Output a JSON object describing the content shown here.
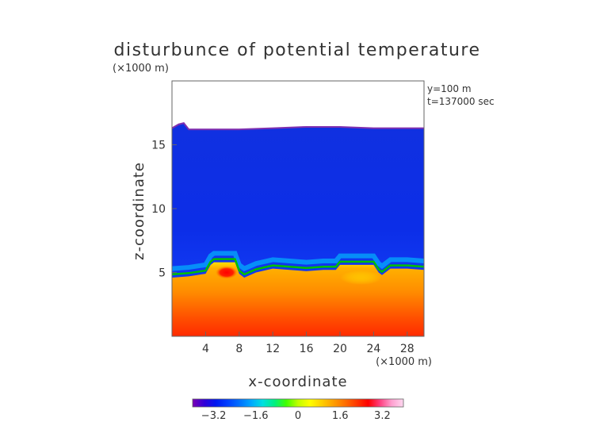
{
  "chart_data": {
    "type": "heatmap",
    "title": "disturbunce of potential temperature",
    "units_note": "(×1000 m)",
    "annotations": [
      "y=100 m",
      "t=137000 sec"
    ],
    "xlabel": "x-coordinate",
    "xunits": "(×1000 m)",
    "ylabel": "z-coordinate",
    "xlim": [
      0,
      30
    ],
    "ylim": [
      0,
      20
    ],
    "xticks": [
      "4",
      "8",
      "12",
      "16",
      "20",
      "24",
      "28"
    ],
    "xtick_values": [
      4,
      8,
      12,
      16,
      20,
      24,
      28
    ],
    "yticks": [
      "5",
      "10",
      "15"
    ],
    "ytick_values": [
      5,
      10,
      15
    ],
    "colorbar": {
      "ticks": [
        "−3.2",
        "−1.6",
        "0",
        "1.6",
        "3.2"
      ],
      "tick_values": [
        -3.2,
        -1.6,
        0,
        1.6,
        3.2
      ],
      "range": [
        -4.0,
        4.0
      ],
      "colors": [
        "#7a00b4",
        "#3000d8",
        "#0018f0",
        "#0040ff",
        "#0070ff",
        "#00a8ff",
        "#00e0e0",
        "#00f080",
        "#40ff00",
        "#c0ff00",
        "#ffff00",
        "#ffd000",
        "#ffa000",
        "#ff7000",
        "#ff3800",
        "#ff0000",
        "#ff4080",
        "#ffa0d0",
        "#ffd8f0"
      ]
    },
    "top_boundary": {
      "x": [
        0,
        0.8,
        1.4,
        2,
        4,
        8,
        12,
        16,
        20,
        24,
        28,
        30
      ],
      "z": [
        16.3,
        16.6,
        16.7,
        16.2,
        16.2,
        16.2,
        16.3,
        16.4,
        16.4,
        16.3,
        16.3,
        16.3
      ]
    },
    "interface": {
      "x": [
        0,
        2,
        3,
        4,
        4.6,
        5,
        7.5,
        8,
        8.6,
        10,
        12,
        14,
        16,
        18,
        19.5,
        20,
        24,
        24.6,
        25,
        26,
        28,
        30
      ],
      "z": [
        4.6,
        4.7,
        4.8,
        4.9,
        5.6,
        5.8,
        5.8,
        4.9,
        4.6,
        5.0,
        5.3,
        5.2,
        5.1,
        5.2,
        5.2,
        5.6,
        5.6,
        5.0,
        4.8,
        5.3,
        5.3,
        5.2
      ]
    },
    "warm_blobs": [
      {
        "x": 6.5,
        "z": 5.0,
        "value": 3.2
      },
      {
        "x": 22.5,
        "z": 4.6,
        "value": 1.4
      }
    ]
  }
}
